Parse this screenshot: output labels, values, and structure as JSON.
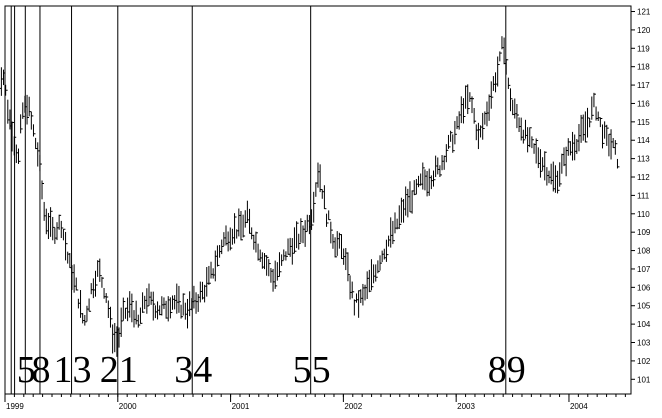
{
  "chart_data": {
    "type": "ohlc",
    "title": "",
    "xlabel": "",
    "ylabel": "",
    "ylim": [
      100.2,
      121.3
    ],
    "y_ticks": [
      101,
      102,
      103,
      104,
      105,
      106,
      107,
      108,
      109,
      110,
      111,
      112,
      113,
      114,
      115,
      116,
      117,
      118,
      119,
      120,
      121
    ],
    "y_tick_labels": [
      "101",
      "102",
      "103",
      "104",
      "105",
      "106",
      "107",
      "108",
      "109",
      "110",
      "111",
      "112",
      "113",
      "114",
      "115",
      "116",
      "117",
      "118",
      "119",
      "120",
      "121"
    ],
    "x_range": [
      1999.0,
      2004.55
    ],
    "x_ticks": [
      {
        "x": 1999.0,
        "label": "1999"
      },
      {
        "x": 2000.0,
        "label": "2000"
      },
      {
        "x": 2001.0,
        "label": "2001"
      },
      {
        "x": 2002.0,
        "label": "2002"
      },
      {
        "x": 2003.0,
        "label": "2003"
      },
      {
        "x": 2004.0,
        "label": "2004"
      }
    ],
    "price_path": [
      [
        1998.93,
        116.5
      ],
      [
        1998.98,
        117.8
      ],
      [
        1999.03,
        115.5
      ],
      [
        1999.08,
        114.0
      ],
      [
        1999.12,
        113.0
      ],
      [
        1999.15,
        115.5
      ],
      [
        1999.2,
        116.0
      ],
      [
        1999.25,
        114.5
      ],
      [
        1999.3,
        113.0
      ],
      [
        1999.35,
        110.0
      ],
      [
        1999.42,
        109.0
      ],
      [
        1999.5,
        109.5
      ],
      [
        1999.56,
        107.5
      ],
      [
        1999.63,
        106.0
      ],
      [
        1999.7,
        104.0
      ],
      [
        1999.77,
        106.0
      ],
      [
        1999.83,
        107.0
      ],
      [
        1999.9,
        105.5
      ],
      [
        1999.95,
        103.5
      ],
      [
        2000.0,
        103.0
      ],
      [
        2000.05,
        104.5
      ],
      [
        2000.12,
        105.0
      ],
      [
        2000.18,
        104.0
      ],
      [
        2000.25,
        105.5
      ],
      [
        2000.32,
        105.0
      ],
      [
        2000.4,
        104.8
      ],
      [
        2000.48,
        105.3
      ],
      [
        2000.55,
        105.0
      ],
      [
        2000.62,
        104.8
      ],
      [
        2000.7,
        105.3
      ],
      [
        2000.78,
        106.0
      ],
      [
        2000.85,
        107.0
      ],
      [
        2000.93,
        108.5
      ],
      [
        2001.0,
        109.0
      ],
      [
        2001.08,
        109.2
      ],
      [
        2001.15,
        109.8
      ],
      [
        2001.22,
        108.5
      ],
      [
        2001.3,
        107.5
      ],
      [
        2001.37,
        106.5
      ],
      [
        2001.43,
        107.0
      ],
      [
        2001.5,
        108.0
      ],
      [
        2001.58,
        108.5
      ],
      [
        2001.65,
        109.0
      ],
      [
        2001.72,
        110.0
      ],
      [
        2001.78,
        112.5
      ],
      [
        2001.85,
        110.0
      ],
      [
        2001.92,
        108.5
      ],
      [
        2002.0,
        108.0
      ],
      [
        2002.05,
        106.5
      ],
      [
        2002.1,
        105.0
      ],
      [
        2002.18,
        105.5
      ],
      [
        2002.25,
        106.5
      ],
      [
        2002.32,
        107.5
      ],
      [
        2002.4,
        108.5
      ],
      [
        2002.48,
        109.5
      ],
      [
        2002.55,
        110.5
      ],
      [
        2002.62,
        111.0
      ],
      [
        2002.7,
        111.8
      ],
      [
        2002.77,
        112.0
      ],
      [
        2002.85,
        112.5
      ],
      [
        2002.92,
        113.5
      ],
      [
        2003.0,
        114.5
      ],
      [
        2003.07,
        116.0
      ],
      [
        2003.13,
        116.2
      ],
      [
        2003.2,
        114.0
      ],
      [
        2003.27,
        115.5
      ],
      [
        2003.33,
        117.0
      ],
      [
        2003.38,
        118.0
      ],
      [
        2003.42,
        119.5
      ],
      [
        2003.46,
        117.0
      ],
      [
        2003.5,
        115.8
      ],
      [
        2003.56,
        115.0
      ],
      [
        2003.62,
        114.2
      ],
      [
        2003.68,
        113.5
      ],
      [
        2003.75,
        113.0
      ],
      [
        2003.82,
        112.2
      ],
      [
        2003.88,
        111.8
      ],
      [
        2003.94,
        112.6
      ],
      [
        2004.0,
        113.5
      ],
      [
        2004.07,
        114.0
      ],
      [
        2004.13,
        114.5
      ],
      [
        2004.18,
        115.2
      ],
      [
        2004.23,
        116.0
      ],
      [
        2004.28,
        114.8
      ],
      [
        2004.33,
        114.0
      ],
      [
        2004.38,
        113.8
      ],
      [
        2004.43,
        113.0
      ]
    ],
    "cycle_lines": [
      {
        "x": 1999.055,
        "label": ""
      },
      {
        "x": 1999.085,
        "label": ""
      },
      {
        "x": 1999.18,
        "label": "5"
      },
      {
        "x": 1999.31,
        "label": "8"
      },
      {
        "x": 1999.59,
        "label": "13"
      },
      {
        "x": 2000.0,
        "label": "21"
      },
      {
        "x": 2000.66,
        "label": "34"
      },
      {
        "x": 2001.71,
        "label": "55"
      },
      {
        "x": 2003.44,
        "label": "89"
      }
    ],
    "colors": {
      "background": "#ffffff",
      "ink": "#000000"
    }
  }
}
